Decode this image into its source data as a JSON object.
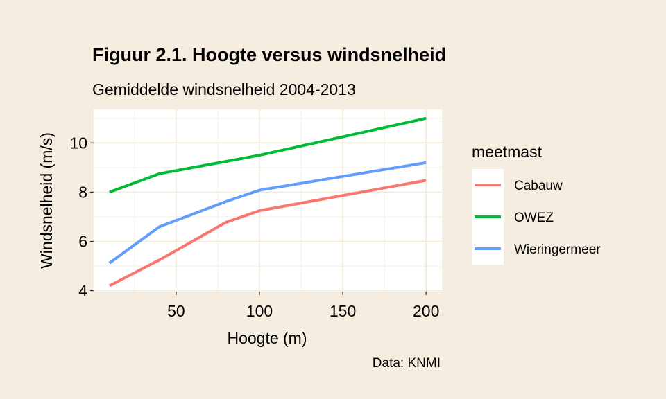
{
  "chart_data": {
    "type": "line",
    "title": "Figuur 2.1. Hoogte versus windsnelheid",
    "subtitle": "Gemiddelde windsnelheid 2004-2013",
    "caption": "Data: KNMI",
    "xlabel": "Hoogte (m)",
    "ylabel": "Windsnelheid (m/s)",
    "xlim": [
      10,
      200
    ],
    "ylim": [
      4,
      11
    ],
    "xticks": [
      50,
      100,
      150,
      200
    ],
    "yticks": [
      4,
      6,
      8,
      10
    ],
    "grid": true,
    "legend": {
      "title": "meetmast",
      "placement": "right"
    },
    "series": [
      {
        "name": "Cabauw",
        "color": "#f8766d",
        "x": [
          10,
          40,
          80,
          100,
          200
        ],
        "y": [
          4.2,
          5.25,
          6.78,
          7.25,
          8.48
        ]
      },
      {
        "name": "OWEZ",
        "color": "#00ba38",
        "x": [
          10,
          40,
          100,
          200
        ],
        "y": [
          8.0,
          8.75,
          9.5,
          11.0
        ]
      },
      {
        "name": "Wieringermeer",
        "color": "#619cff",
        "x": [
          10,
          40,
          80,
          100,
          200
        ],
        "y": [
          5.12,
          6.6,
          7.62,
          8.08,
          9.2
        ]
      }
    ]
  }
}
